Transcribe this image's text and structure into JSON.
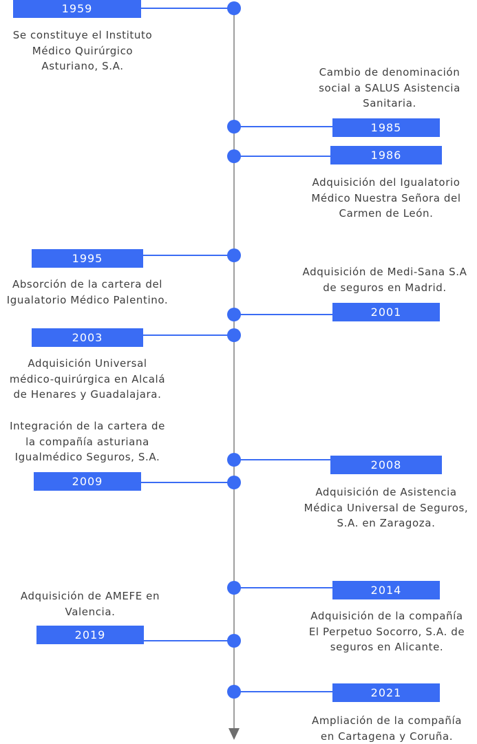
{
  "accent_color": "#3a6cf4",
  "events": [
    {
      "year": "1959",
      "text": "Se constituye el Instituto\nMédico Quirúrgico\nAsturiano, S.A."
    },
    {
      "year": "1985",
      "text": "Cambio de denominación\nsocial a SALUS Asistencia\nSanitaria."
    },
    {
      "year": "1986",
      "text": "Adquisición del Igualatorio\nMédico Nuestra Señora del\nCarmen de León."
    },
    {
      "year": "1995",
      "text": "Absorción de la cartera del\nIgualatorio Médico Palentino."
    },
    {
      "year": "2001",
      "text": "Adquisición de Medi-Sana S.A\nde seguros en Madrid."
    },
    {
      "year": "2003",
      "text": "Adquisición Universal\nmédico-quirúrgica en Alcalá\nde Henares y Guadalajara."
    },
    {
      "year": "2008",
      "text": "Adquisición de Asistencia\nMédica Universal de Seguros,\nS.A. en Zaragoza."
    },
    {
      "year": "2009",
      "text": "Integración de la cartera de\nla compañía asturiana\nIgualmédico Seguros, S.A."
    },
    {
      "year": "2014",
      "text": "Adquisición de la compañía\nEl Perpetuo Socorro, S.A. de\nseguros en Alicante."
    },
    {
      "year": "2019",
      "text": "Adquisición de AMEFE en\nValencia."
    },
    {
      "year": "2021",
      "text": "Ampliación de la compañía\nen Cartagena y Coruña."
    }
  ]
}
